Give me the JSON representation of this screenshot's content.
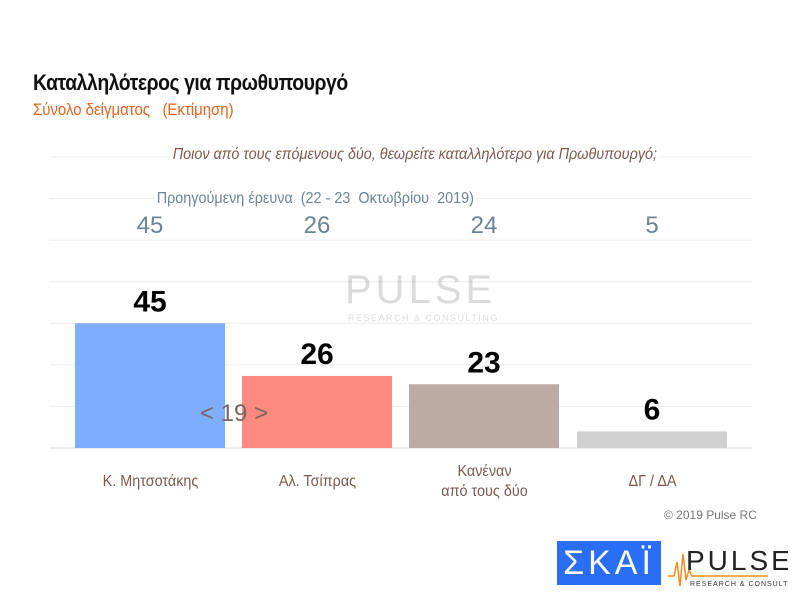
{
  "header": {
    "title": "Καταλληλότερος για πρωθυπουργό",
    "subtitle": "Σύνολο δείγματος   (Εκτίμηση)"
  },
  "question": "Ποιον από τους επόμενους δύο, θεωρείτε καταλληλότερο για Πρωθυπουργό;",
  "previous_survey": {
    "label": "Προηγούμενη έρευνα  (22 - 23  Οκτωβρίου  2019)",
    "values": [
      "45",
      "26",
      "24",
      "5"
    ]
  },
  "annotation": "< 19 >",
  "chart_data": {
    "type": "bar",
    "title": "Καταλληλότερος για πρωθυπουργό",
    "categories": [
      "Κ. Μητσοτάκης",
      "Αλ. Τσίπρας",
      "Κανέναν\nαπό τους δύο",
      "ΔΓ / ΔΑ"
    ],
    "values": [
      45,
      26,
      23,
      6
    ],
    "previous_values": [
      45,
      26,
      24,
      5
    ],
    "colors": [
      "#7eadfb",
      "#fe8a80",
      "#bcaaa3",
      "#d0d0d0"
    ],
    "ylim": [
      0,
      105
    ],
    "grid": true
  },
  "footer": {
    "copyright": "© 2019 Pulse RC",
    "skai_logo": "ΣΚΑΪ",
    "pulse_logo": "PULSE RESEARCH & CONSULTING"
  },
  "watermark": "PULSE RESEARCH & CONSULTING"
}
